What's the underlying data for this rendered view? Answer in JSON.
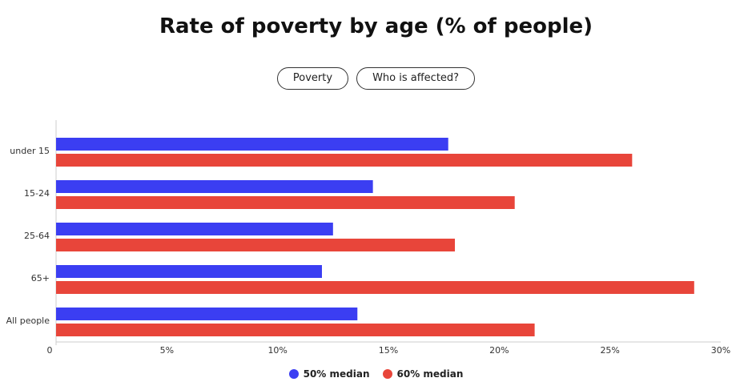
{
  "tabs": [
    {
      "label": "Poverty"
    },
    {
      "label": "Who is affected?"
    }
  ],
  "chart_data": {
    "type": "bar",
    "orientation": "horizontal",
    "title": "Rate of poverty by age (% of people)",
    "categories": [
      "under 15",
      "15-24",
      "25-64",
      "65+",
      "All people"
    ],
    "series": [
      {
        "name": "50% median",
        "color": "#3b3ef2",
        "values": [
          17.7,
          14.3,
          12.5,
          12.0,
          13.6
        ]
      },
      {
        "name": "60% median",
        "color": "#e8453a",
        "values": [
          26.0,
          20.7,
          18.0,
          28.8,
          21.6
        ]
      }
    ],
    "xlim": [
      0,
      30
    ],
    "xticks": [
      {
        "value": 0,
        "label": "0"
      },
      {
        "value": 5,
        "label": "5%"
      },
      {
        "value": 10,
        "label": "10%"
      },
      {
        "value": 15,
        "label": "15%"
      },
      {
        "value": 20,
        "label": "20%"
      },
      {
        "value": 25,
        "label": "25%"
      },
      {
        "value": 30,
        "label": "30%"
      }
    ],
    "grid": false,
    "legend_position": "bottom"
  }
}
